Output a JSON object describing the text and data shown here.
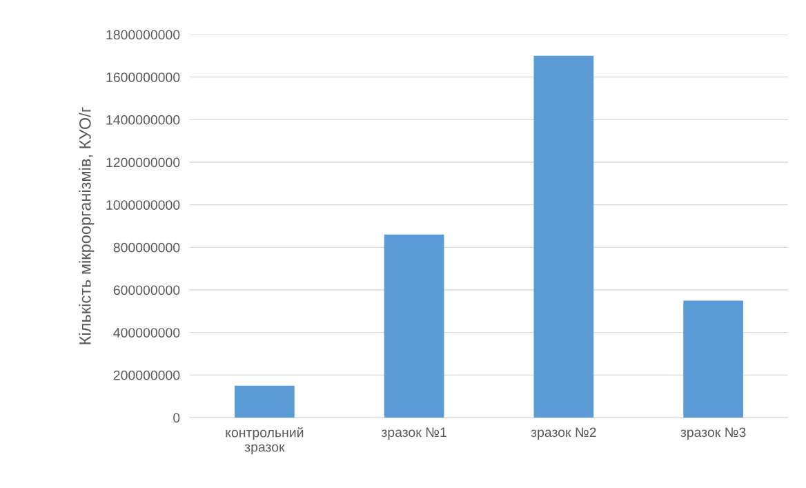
{
  "chart_data": {
    "type": "bar",
    "ylabel": "Кількість мікроорганізмів, КУО/г",
    "categories": [
      "контрольний зразок",
      "зразок №1",
      "зразок №2",
      "зразок №3"
    ],
    "values": [
      150000000,
      860000000,
      1700000000,
      550000000
    ],
    "color": "#5b9bd5",
    "ylim": [
      0,
      1800000000
    ],
    "yticks": [
      0,
      200000000,
      400000000,
      600000000,
      800000000,
      1000000000,
      1200000000,
      1400000000,
      1600000000,
      1800000000
    ],
    "grid": "y"
  }
}
